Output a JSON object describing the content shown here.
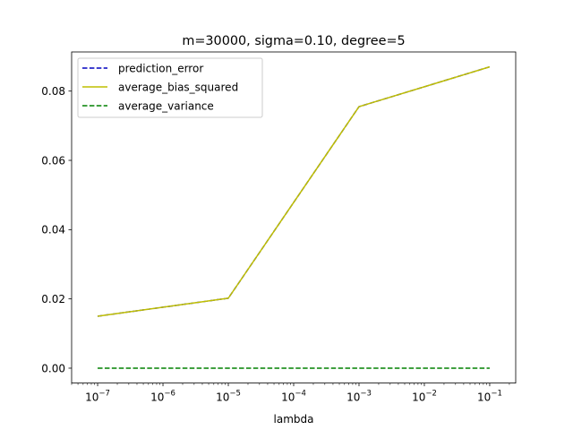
{
  "chart_data": {
    "type": "line",
    "title": "m=30000, sigma=0.10, degree=5",
    "xlabel": "lambda",
    "ylabel": "",
    "xscale": "log",
    "x": [
      1e-07,
      1e-05,
      0.001,
      0.1
    ],
    "xlim": [
      4e-08,
      0.25
    ],
    "ylim": [
      -0.0043,
      0.0913
    ],
    "xticks": [
      1e-07,
      1e-06,
      1e-05,
      0.0001,
      0.001,
      0.01,
      0.1
    ],
    "xtick_labels": [
      {
        "base": "10",
        "exp": "−7"
      },
      {
        "base": "10",
        "exp": "−6"
      },
      {
        "base": "10",
        "exp": "−5"
      },
      {
        "base": "10",
        "exp": "−4"
      },
      {
        "base": "10",
        "exp": "−3"
      },
      {
        "base": "10",
        "exp": "−2"
      },
      {
        "base": "10",
        "exp": "−1"
      }
    ],
    "yticks": [
      0.0,
      0.02,
      0.04,
      0.06,
      0.08
    ],
    "ytick_labels": [
      "0.00",
      "0.02",
      "0.04",
      "0.06",
      "0.08"
    ],
    "legend_position": "top-left",
    "grid": false,
    "series": [
      {
        "name": "prediction_error",
        "values": [
          0.015,
          0.0202,
          0.0755,
          0.087
        ],
        "color": "#0000bf",
        "style": "dashed"
      },
      {
        "name": "average_bias_squared",
        "values": [
          0.015,
          0.0202,
          0.0755,
          0.087
        ],
        "color": "#bfbf00",
        "style": "solid"
      },
      {
        "name": "average_variance",
        "values": [
          0.0,
          0.0,
          0.0,
          0.0
        ],
        "color": "#008000",
        "style": "dashed"
      }
    ]
  }
}
